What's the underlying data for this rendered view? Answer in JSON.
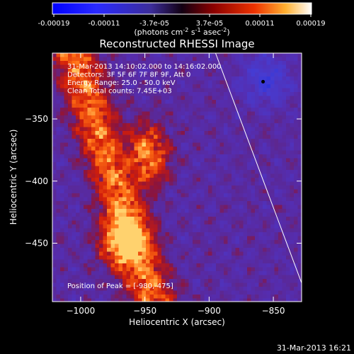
{
  "colorbar": {
    "ticks": [
      "-0.00019",
      "-0.00011",
      "-3.7e-05",
      "3.7e-05",
      "0.00011",
      "0.00019"
    ],
    "units_main": "(photons cm",
    "units_exp1": "-2",
    "units_mid": " s",
    "units_exp2": "-1",
    "units_tail": " asec",
    "units_exp3": "-2",
    "units_close": ")"
  },
  "chart_data": {
    "type": "heatmap",
    "title": "Reconstructed RHESSI Image",
    "xlabel": "Heliocentric X (arcsec)",
    "ylabel": "Heliocentric Y (arcsec)",
    "xlim": [
      -1022,
      -828
    ],
    "ylim": [
      -497,
      -297
    ],
    "x_ticks": [
      -1000,
      -950,
      -900,
      -850
    ],
    "y_ticks": [
      -350,
      -400,
      -450
    ],
    "value_range": [
      -0.00019,
      0.00019
    ],
    "annotation_lines": [
      "31-Mar-2013 14:10:02.000 to 14:16:02.000",
      "Detectors: 3F 5F 6F 7F 8F 9F, Att 0",
      "Energy Range: 25.0 - 50.0 keV",
      "Clean    Total counts: 7.45E+03"
    ],
    "peak_label": "Position of Peak = [-980,-475]",
    "limb_points": [
      [
        -895,
        -297
      ],
      [
        -828,
        -482
      ]
    ],
    "marker_point": [
      -858,
      -320
    ]
  },
  "timestamp": "31-Mar-2013 16:21"
}
